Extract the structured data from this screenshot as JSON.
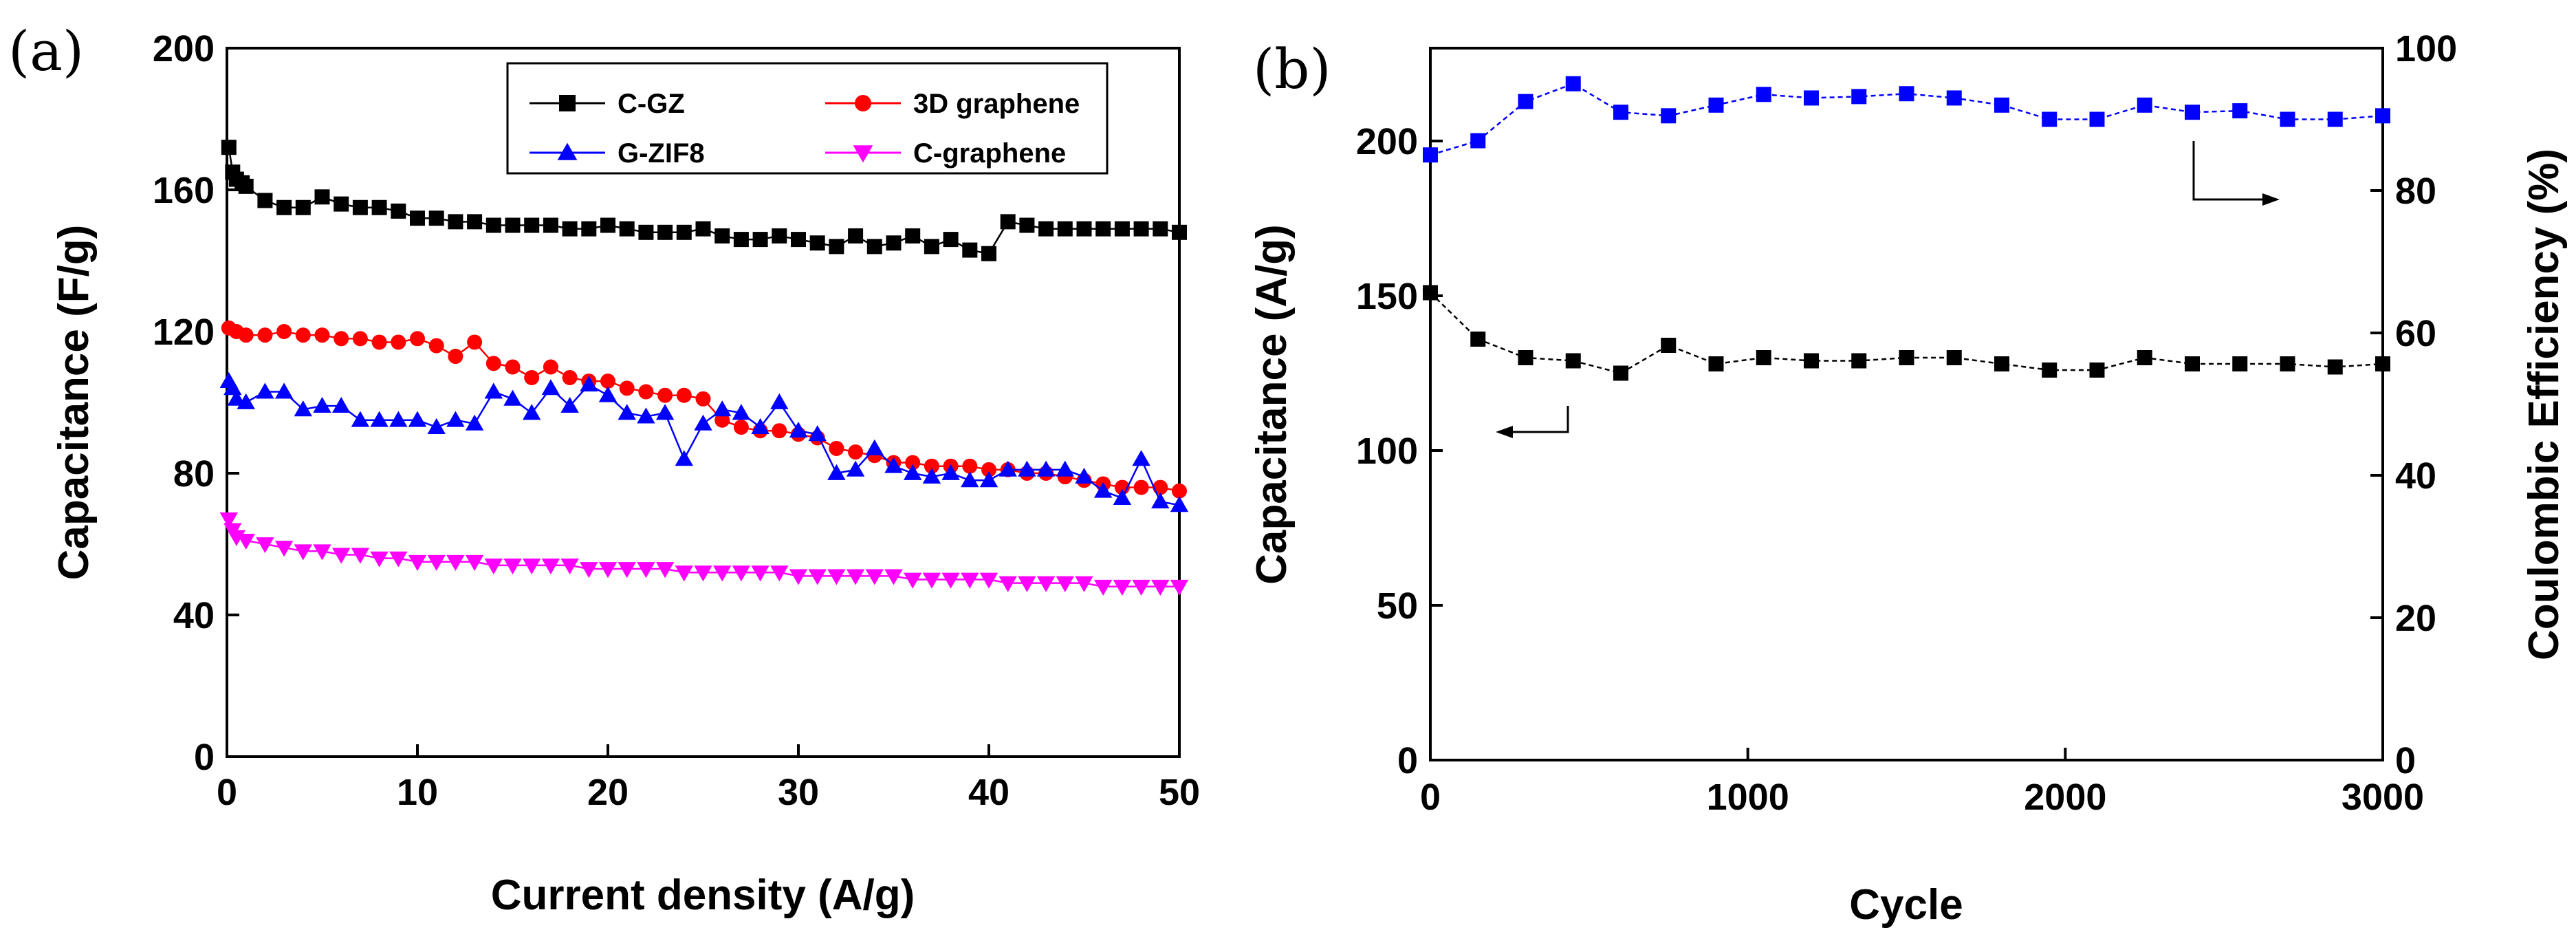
{
  "chart_data": [
    {
      "panel_label": "(a)",
      "type": "line",
      "xlabel": "Current density (A/g)",
      "ylabel": "Capacitance (F/g)",
      "xlim": [
        0,
        50
      ],
      "ylim": [
        0,
        200
      ],
      "xticks": [
        0,
        10,
        20,
        30,
        40,
        50
      ],
      "yticks": [
        0,
        40,
        80,
        120,
        160,
        200
      ],
      "legend_position": "top-right",
      "series": [
        {
          "name": "C-GZ",
          "marker": "square",
          "color": "#000000",
          "x": [
            0.1,
            0.3,
            0.5,
            0.8,
            1,
            2,
            3,
            4,
            5,
            6,
            7,
            8,
            9,
            10,
            11,
            12,
            13,
            14,
            15,
            16,
            17,
            18,
            19,
            20,
            21,
            22,
            23,
            24,
            25,
            26,
            27,
            28,
            29,
            30,
            31,
            32,
            33,
            34,
            35,
            36,
            37,
            38,
            39,
            40,
            41,
            42,
            43,
            44,
            45,
            46,
            47,
            48,
            49,
            50
          ],
          "y": [
            172,
            165,
            163,
            162,
            161,
            157,
            155,
            155,
            158,
            156,
            155,
            155,
            154,
            152,
            152,
            151,
            151,
            150,
            150,
            150,
            150,
            149,
            149,
            150,
            149,
            148,
            148,
            148,
            149,
            147,
            146,
            146,
            147,
            146,
            145,
            144,
            147,
            144,
            145,
            147,
            144,
            146,
            143,
            142,
            151,
            150,
            149,
            149,
            149,
            149,
            149,
            149,
            149,
            148
          ]
        },
        {
          "name": "3D graphene",
          "marker": "circle",
          "color": "#ff0000",
          "x": [
            0.1,
            0.5,
            1,
            2,
            3,
            4,
            5,
            6,
            7,
            8,
            9,
            10,
            11,
            12,
            13,
            14,
            15,
            16,
            17,
            18,
            19,
            20,
            21,
            22,
            23,
            24,
            25,
            26,
            27,
            28,
            29,
            30,
            31,
            32,
            33,
            34,
            35,
            36,
            37,
            38,
            39,
            40,
            41,
            42,
            43,
            44,
            45,
            46,
            47,
            48,
            49,
            50
          ],
          "y": [
            121,
            120,
            119,
            119,
            120,
            119,
            119,
            118,
            118,
            117,
            117,
            118,
            116,
            113,
            117,
            111,
            110,
            107,
            110,
            107,
            106,
            106,
            104,
            103,
            102,
            102,
            101,
            95,
            93,
            92,
            92,
            91,
            90,
            87,
            86,
            85,
            83,
            83,
            82,
            82,
            82,
            81,
            81,
            80,
            80,
            79,
            78,
            77,
            76,
            76,
            76,
            75
          ]
        },
        {
          "name": "G-ZIF8",
          "marker": "triangle-up",
          "color": "#0000ff",
          "x": [
            0.1,
            0.3,
            0.5,
            1,
            2,
            3,
            4,
            5,
            6,
            7,
            8,
            9,
            10,
            11,
            12,
            13,
            14,
            15,
            16,
            17,
            18,
            19,
            20,
            21,
            22,
            23,
            24,
            25,
            26,
            27,
            28,
            29,
            30,
            31,
            32,
            33,
            34,
            35,
            36,
            37,
            38,
            39,
            40,
            41,
            42,
            43,
            44,
            45,
            46,
            47,
            48,
            49,
            50
          ],
          "y": [
            106,
            104,
            101,
            100,
            103,
            103,
            98,
            99,
            99,
            95,
            95,
            95,
            95,
            93,
            95,
            94,
            103,
            101,
            97,
            104,
            99,
            105,
            102,
            97,
            96,
            97,
            84,
            94,
            98,
            97,
            93,
            100,
            92,
            91,
            80,
            81,
            87,
            82,
            80,
            79,
            80,
            78,
            78,
            81,
            81,
            81,
            81,
            79,
            75,
            73,
            84,
            72,
            71
          ]
        },
        {
          "name": "C-graphene",
          "marker": "triangle-down",
          "color": "#ff00ff",
          "x": [
            0.1,
            0.3,
            0.5,
            1,
            2,
            3,
            4,
            5,
            6,
            7,
            8,
            9,
            10,
            11,
            12,
            13,
            14,
            15,
            16,
            17,
            18,
            19,
            20,
            21,
            22,
            23,
            24,
            25,
            26,
            27,
            28,
            29,
            30,
            31,
            32,
            33,
            34,
            35,
            36,
            37,
            38,
            39,
            40,
            41,
            42,
            43,
            44,
            45,
            46,
            47,
            48,
            49,
            50
          ],
          "y": [
            67,
            64,
            62,
            61,
            60,
            59,
            58,
            58,
            57,
            57,
            56,
            56,
            55,
            55,
            55,
            55,
            54,
            54,
            54,
            54,
            54,
            53,
            53,
            53,
            53,
            53,
            52,
            52,
            52,
            52,
            52,
            52,
            51,
            51,
            51,
            51,
            51,
            51,
            50,
            50,
            50,
            50,
            50,
            49,
            49,
            49,
            49,
            49,
            48,
            48,
            48,
            48,
            48
          ]
        }
      ]
    },
    {
      "panel_label": "(b)",
      "type": "line",
      "xlabel": "Cycle",
      "ylabel": "Capacitance (A/g)",
      "y2label": "Coulombic Efficiency (%)",
      "xlim": [
        0,
        3000
      ],
      "ylim": [
        0,
        230
      ],
      "y2lim": [
        0,
        100
      ],
      "xticks": [
        0,
        1000,
        2000,
        3000
      ],
      "yticks": [
        0,
        50,
        100,
        150,
        200
      ],
      "y2ticks": [
        0,
        20,
        40,
        60,
        80,
        100
      ],
      "series": [
        {
          "name": "Capacitance",
          "axis": "left",
          "marker": "square",
          "color": "#000000",
          "x": [
            0,
            150,
            300,
            450,
            600,
            750,
            900,
            1050,
            1200,
            1350,
            1500,
            1650,
            1800,
            1950,
            2100,
            2250,
            2400,
            2550,
            2700,
            2850,
            3000
          ],
          "y": [
            151,
            136,
            130,
            129,
            125,
            134,
            128,
            130,
            129,
            129,
            130,
            130,
            128,
            126,
            126,
            130,
            128,
            128,
            128,
            127,
            128
          ]
        },
        {
          "name": "Coulombic Efficiency",
          "axis": "right",
          "marker": "square",
          "color": "#0000ff",
          "x": [
            0,
            150,
            300,
            450,
            600,
            750,
            900,
            1050,
            1200,
            1350,
            1500,
            1650,
            1800,
            1950,
            2100,
            2250,
            2400,
            2550,
            2700,
            2850,
            3000
          ],
          "y": [
            85,
            87,
            92.5,
            95,
            91,
            90.5,
            92,
            93.5,
            93,
            93.2,
            93.6,
            93,
            92,
            90,
            90,
            92,
            91,
            91.2,
            90,
            90,
            90.5
          ]
        }
      ]
    }
  ]
}
